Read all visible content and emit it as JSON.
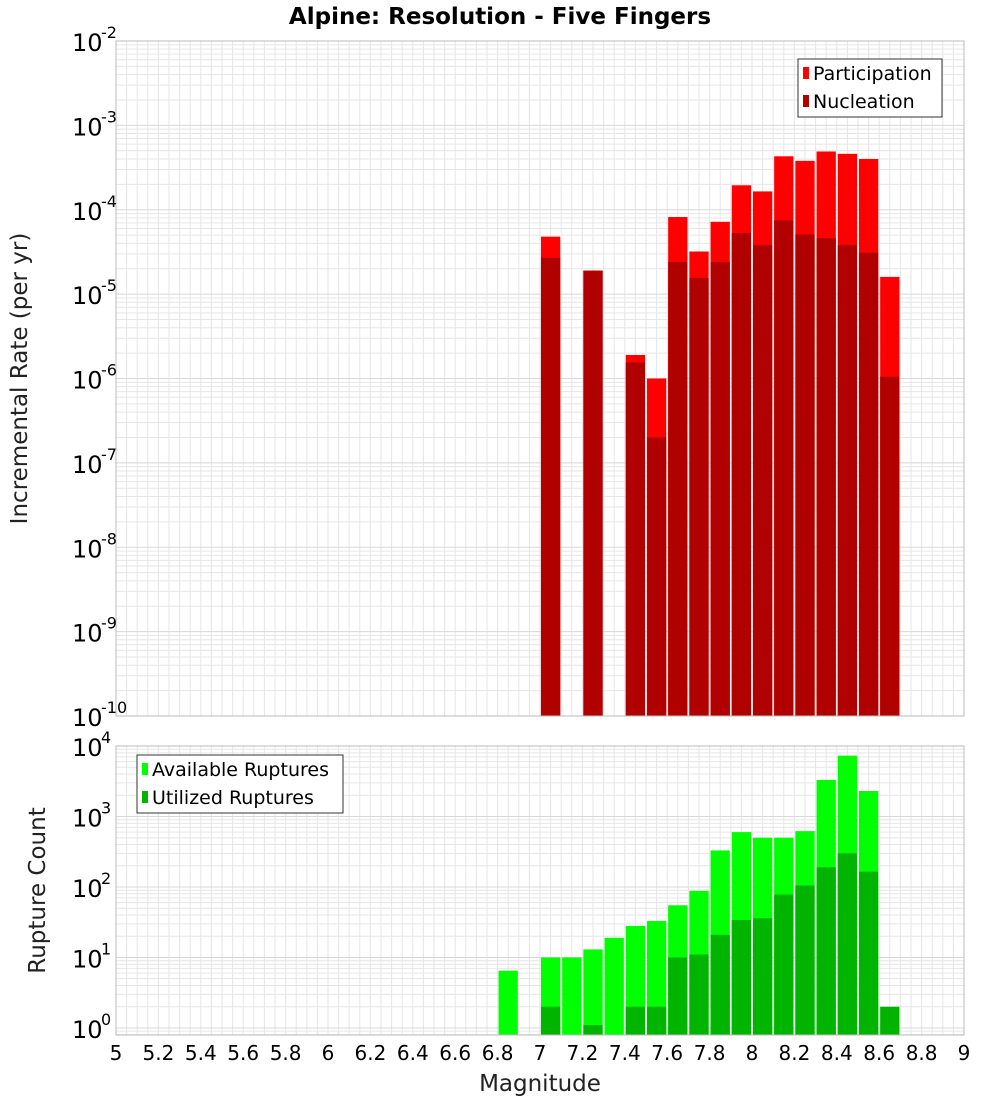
{
  "title": "Alpine: Resolution - Five Fingers",
  "xlabel": "Magnitude",
  "xticks": [
    "5",
    "5.2",
    "5.4",
    "5.6",
    "5.8",
    "6",
    "6.2",
    "6.4",
    "6.6",
    "6.8",
    "7",
    "7.2",
    "7.4",
    "7.6",
    "7.8",
    "8",
    "8.2",
    "8.4",
    "8.6",
    "8.8",
    "9"
  ],
  "colors": {
    "participation": "#ff0000",
    "nucleation": "#b00000",
    "available": "#00ff00",
    "utilized": "#00b400",
    "grid": "#e6e6e6",
    "frame": "#bbbbbb"
  },
  "chart_data": [
    {
      "type": "bar",
      "ylabel": "Incremental Rate (per yr)",
      "yscale": "log",
      "ylim_exp": [
        -10,
        -2
      ],
      "xlim": [
        5,
        9
      ],
      "bin_width": 0.1,
      "legend_position": "top-right",
      "legend": [
        "Participation",
        "Nucleation"
      ],
      "x": [
        7.05,
        7.25,
        7.45,
        7.55,
        7.65,
        7.75,
        7.85,
        7.95,
        8.05,
        8.15,
        8.25,
        8.35,
        8.45,
        8.55,
        8.65
      ],
      "series": [
        {
          "name": "Participation",
          "values": [
            4.8e-05,
            1.9e-05,
            1.9e-06,
            1e-06,
            8.2e-05,
            3.2e-05,
            7.2e-05,
            0.000195,
            0.000165,
            0.00043,
            0.00038,
            0.00049,
            0.00046,
            0.0004,
            1.6e-05
          ]
        },
        {
          "name": "Nucleation",
          "values": [
            2.7e-05,
            1.9e-05,
            1.55e-06,
            2e-07,
            2.4e-05,
            1.55e-05,
            2.4e-05,
            5.3e-05,
            3.8e-05,
            7.5e-05,
            5.1e-05,
            4.6e-05,
            3.8e-05,
            3.1e-05,
            1.05e-06
          ]
        }
      ]
    },
    {
      "type": "bar",
      "ylabel": "Rupture Count",
      "yscale": "log",
      "ylim_exp": [
        -0.1,
        4
      ],
      "tick_exps": [
        0,
        1,
        2,
        3,
        4
      ],
      "xlim": [
        5,
        9
      ],
      "bin_width": 0.1,
      "legend_position": "top-left",
      "legend": [
        "Available Ruptures",
        "Utilized Ruptures"
      ],
      "x": [
        6.85,
        7.05,
        7.15,
        7.25,
        7.35,
        7.45,
        7.55,
        7.65,
        7.75,
        7.85,
        7.95,
        8.05,
        8.15,
        8.25,
        8.35,
        8.45,
        8.55,
        8.65
      ],
      "series": [
        {
          "name": "Available Ruptures",
          "values": [
            6.5,
            10,
            10,
            13,
            19,
            28,
            33,
            55,
            88,
            330,
            600,
            500,
            500,
            620,
            3300,
            7300,
            2300,
            0
          ]
        },
        {
          "name": "Utilized Ruptures",
          "values": [
            0,
            2,
            0,
            1.1,
            0,
            2,
            2,
            10,
            11,
            21,
            34,
            36,
            78,
            105,
            190,
            300,
            165,
            2
          ]
        }
      ]
    }
  ]
}
